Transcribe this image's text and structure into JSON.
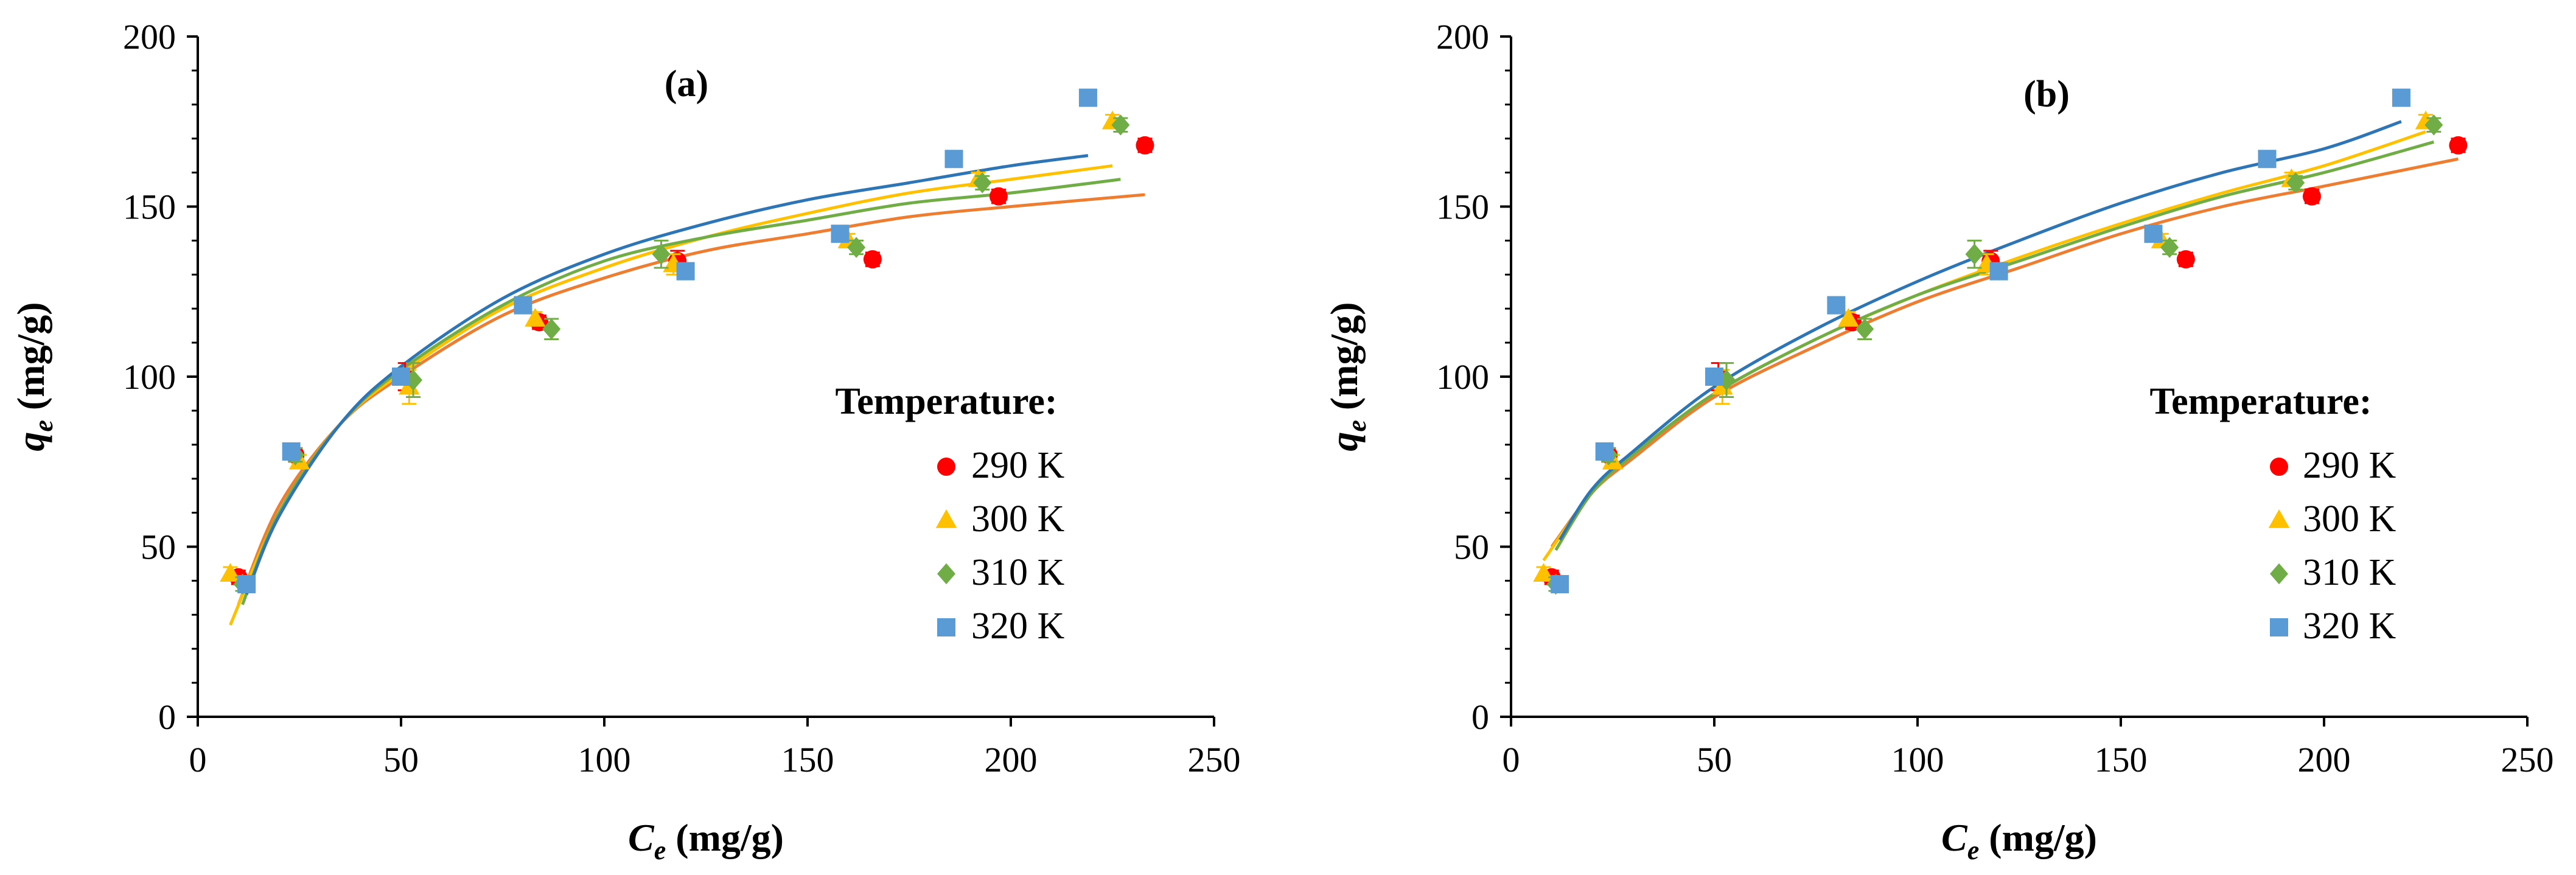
{
  "figure": {
    "colors": {
      "290 K": "#ff0000",
      "300 K": "#ffc000",
      "310 K": "#70ad47",
      "320 K": "#5b9bd5",
      "fit_290": "#ed7d31",
      "fit_300": "#ffc000",
      "fit_310": "#70ad47",
      "fit_320": "#2e75b6"
    }
  },
  "chart_data": [
    {
      "type": "scatter",
      "panel_label": "(a)",
      "xlabel": {
        "main": "C",
        "sub": "e",
        "unit": " (mg/g)"
      },
      "ylabel": {
        "main": "q",
        "sub": "e",
        "unit": " (mg/g)"
      },
      "xlim": [
        0,
        250
      ],
      "ylim": [
        0,
        200
      ],
      "x_ticks": [
        "0",
        "50",
        "100",
        "150",
        "200",
        "250"
      ],
      "y_ticks": [
        "0",
        "50",
        "100",
        "150",
        "200"
      ],
      "legend_title": "Temperature:",
      "legend_position": "right",
      "series": [
        {
          "name": "290 K",
          "marker": "circle",
          "color": "#ff0000",
          "x": [
            10,
            24,
            51,
            84,
            118,
            166,
            197,
            233
          ],
          "y": [
            41,
            77,
            100,
            116,
            134,
            134.5,
            153,
            168
          ],
          "err": [
            2,
            2,
            4,
            2,
            3,
            2,
            2,
            2
          ]
        },
        {
          "name": "300 K",
          "marker": "triangle",
          "color": "#ffc000",
          "x": [
            8,
            25,
            52,
            83,
            117,
            160,
            192,
            225
          ],
          "y": [
            42,
            75,
            97,
            117,
            133,
            140,
            158,
            175
          ],
          "err": [
            2,
            2,
            5,
            2,
            3,
            2,
            2,
            2
          ]
        },
        {
          "name": "310 K",
          "marker": "diamond",
          "color": "#70ad47",
          "x": [
            11,
            24,
            53,
            87,
            114,
            162,
            193,
            227
          ],
          "y": [
            39,
            77,
            99,
            114,
            136,
            138,
            157,
            174
          ],
          "err": [
            2,
            2,
            5,
            3,
            4,
            2,
            2,
            2
          ]
        },
        {
          "name": "320 K",
          "marker": "square",
          "color": "#5b9bd5",
          "x": [
            12,
            23,
            50,
            80,
            120,
            158,
            186,
            219
          ],
          "y": [
            39,
            78,
            100,
            121,
            131,
            142,
            164,
            182
          ],
          "err": [
            2,
            2,
            2,
            2,
            2,
            2,
            2,
            2
          ]
        }
      ],
      "fits": [
        {
          "color": "#ed7d31",
          "x": [
            10,
            20,
            35,
            50,
            75,
            100,
            125,
            150,
            175,
            200,
            233
          ],
          "y": [
            33,
            62,
            86,
            100,
            118,
            129,
            137,
            142,
            147,
            150,
            153.5
          ]
        },
        {
          "color": "#ffc000",
          "x": [
            8,
            20,
            35,
            50,
            75,
            100,
            125,
            150,
            175,
            200,
            225
          ],
          "y": [
            27,
            60,
            86,
            101,
            120,
            132,
            141,
            148,
            154,
            158,
            162
          ]
        },
        {
          "color": "#70ad47",
          "x": [
            11,
            20,
            35,
            50,
            75,
            100,
            125,
            150,
            175,
            200,
            227
          ],
          "y": [
            33,
            60,
            86,
            102,
            121,
            134,
            141,
            146,
            151,
            154,
            158
          ]
        },
        {
          "color": "#2e75b6",
          "x": [
            12,
            20,
            35,
            50,
            75,
            100,
            125,
            150,
            175,
            200,
            219
          ],
          "y": [
            36,
            59,
            86,
            103,
            123,
            136,
            145,
            152,
            157,
            162,
            165
          ]
        }
      ]
    },
    {
      "type": "scatter",
      "panel_label": "(b)",
      "xlabel": {
        "main": "C",
        "sub": "e",
        "unit": " (mg/g)"
      },
      "ylabel": {
        "main": "q",
        "sub": "e",
        "unit": " (mg/g)"
      },
      "xlim": [
        0,
        250
      ],
      "ylim": [
        0,
        200
      ],
      "x_ticks": [
        "0",
        "50",
        "100",
        "150",
        "200",
        "250"
      ],
      "y_ticks": [
        "0",
        "50",
        "100",
        "150",
        "200"
      ],
      "legend_title": "Temperature:",
      "legend_position": "right",
      "series": [
        {
          "name": "290 K",
          "marker": "circle",
          "color": "#ff0000",
          "x": [
            10,
            24,
            51,
            84,
            118,
            166,
            197,
            233
          ],
          "y": [
            41,
            77,
            100,
            116,
            134,
            134.5,
            153,
            168
          ],
          "err": [
            2,
            2,
            4,
            2,
            3,
            2,
            2,
            2
          ]
        },
        {
          "name": "300 K",
          "marker": "triangle",
          "color": "#ffc000",
          "x": [
            8,
            25,
            52,
            83,
            117,
            160,
            192,
            225
          ],
          "y": [
            42,
            75,
            97,
            117,
            133,
            140,
            158,
            175
          ],
          "err": [
            2,
            2,
            5,
            2,
            3,
            2,
            2,
            2
          ]
        },
        {
          "name": "310 K",
          "marker": "diamond",
          "color": "#70ad47",
          "x": [
            11,
            24,
            53,
            87,
            114,
            162,
            193,
            227
          ],
          "y": [
            39,
            77,
            99,
            114,
            136,
            138,
            157,
            174
          ],
          "err": [
            2,
            2,
            5,
            3,
            4,
            2,
            2,
            2
          ]
        },
        {
          "name": "320 K",
          "marker": "square",
          "color": "#5b9bd5",
          "x": [
            12,
            23,
            50,
            80,
            120,
            158,
            186,
            219
          ],
          "y": [
            39,
            78,
            100,
            121,
            131,
            142,
            164,
            182
          ],
          "err": [
            2,
            2,
            2,
            2,
            2,
            2,
            2,
            2
          ]
        }
      ],
      "fits": [
        {
          "color": "#ed7d31",
          "x": [
            10,
            20,
            30,
            50,
            75,
            100,
            125,
            150,
            175,
            200,
            233
          ],
          "y": [
            50,
            66,
            76,
            94,
            109,
            122,
            132,
            142,
            150,
            156,
            164
          ]
        },
        {
          "color": "#ffc000",
          "x": [
            8,
            20,
            30,
            50,
            75,
            100,
            125,
            150,
            175,
            200,
            225
          ],
          "y": [
            46,
            66,
            77,
            95,
            111,
            124,
            135,
            145,
            154,
            162,
            172
          ]
        },
        {
          "color": "#70ad47",
          "x": [
            11,
            20,
            30,
            50,
            75,
            100,
            125,
            150,
            175,
            200,
            227
          ],
          "y": [
            49,
            66,
            77,
            95,
            111,
            124,
            134,
            144,
            153,
            160,
            169
          ]
        },
        {
          "color": "#2e75b6",
          "x": [
            12,
            20,
            30,
            50,
            75,
            100,
            125,
            150,
            175,
            200,
            219
          ],
          "y": [
            52,
            67,
            78,
            97,
            114,
            128,
            140,
            151,
            160,
            167,
            175
          ]
        }
      ]
    }
  ]
}
